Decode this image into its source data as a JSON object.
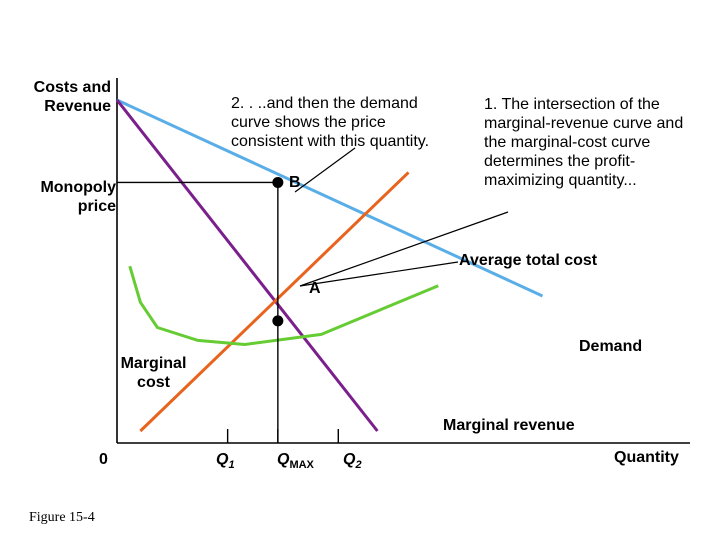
{
  "chart_data": {
    "type": "line",
    "axes": {
      "ylabel": "Costs and Revenue",
      "xlabel": "Quantity",
      "origin_label": "0",
      "x_ticks": [
        {
          "key": "q1",
          "main": "Q",
          "sub": "1"
        },
        {
          "key": "qmax",
          "main": "Q",
          "sub": "MAX"
        },
        {
          "key": "q2",
          "main": "Q",
          "sub": "2"
        }
      ],
      "y_ticks": [
        {
          "key": "monopoly_price",
          "label": "Monopoly price"
        }
      ]
    },
    "series": [
      {
        "name": "Demand",
        "color": "#5aaee8",
        "x": [
          0,
          10
        ],
        "y": [
          10,
          3.77
        ]
      },
      {
        "name": "Marginal revenue",
        "color": "#7a1f8c",
        "x": [
          0,
          6.12
        ],
        "y": [
          10,
          -0.52
        ]
      },
      {
        "name": "Marginal cost",
        "color": "#e8641e",
        "x": [
          0.55,
          6.85
        ],
        "y": [
          -0.52,
          7.7
        ]
      },
      {
        "name": "Average total cost",
        "color": "#66cc33",
        "x": [
          0.3,
          0.55,
          0.95,
          1.9,
          3.0,
          4.8,
          7.55
        ],
        "y": [
          4.72,
          3.57,
          2.77,
          2.36,
          2.23,
          2.55,
          4.1
        ]
      }
    ],
    "points": [
      {
        "name": "A",
        "x": 3.78,
        "y": 2.98
      },
      {
        "name": "B",
        "x": 3.78,
        "y": 7.38
      }
    ],
    "annotations": {
      "step1": "1. The intersection of the marginal-revenue curve and the marginal-cost curve determines the profit-maximizing quantity...",
      "step2": "2. . ..and then the demand curve shows the price consistent with this quantity."
    },
    "xlim": [
      0,
      13.7
    ],
    "ylim": [
      -0.9,
      10
    ]
  },
  "figure_caption": "Figure 15-4"
}
